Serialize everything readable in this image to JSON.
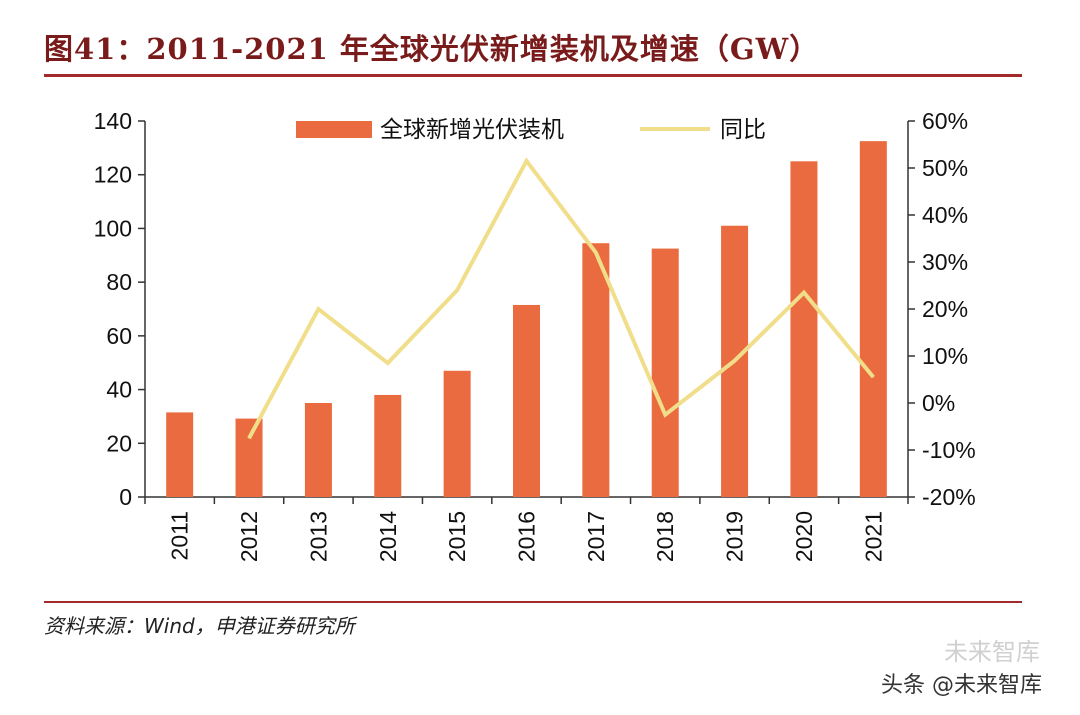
{
  "figure": {
    "title": "图41：2011-2021 年全球光伏新增装机及增速（GW）",
    "source": "资料来源：Wind，申港证券研究所",
    "watermark": "头条 @未来智库",
    "watermark_ghost": "未来智库"
  },
  "colors": {
    "bar": "#ea6b3f",
    "line": "#f1de8a",
    "title": "#7a1b1b",
    "rule": "#a32a2a"
  },
  "chart_data": {
    "type": "bar",
    "categories": [
      "2011",
      "2012",
      "2013",
      "2014",
      "2015",
      "2016",
      "2017",
      "2018",
      "2019",
      "2020",
      "2021"
    ],
    "series": [
      {
        "name": "全球新增光伏装机",
        "type": "bar",
        "axis": "left",
        "values": [
          31.5,
          29.2,
          35.0,
          38.0,
          47.0,
          71.5,
          94.5,
          92.5,
          101.0,
          125.0,
          132.5
        ]
      },
      {
        "name": "同比",
        "type": "line",
        "axis": "right",
        "values": [
          null,
          -7.5,
          20.0,
          8.5,
          24.0,
          51.5,
          32.0,
          -2.5,
          9.0,
          23.5,
          5.5
        ]
      }
    ],
    "y_left": {
      "min": 0,
      "max": 140,
      "step": 20,
      "ticks": [
        "0",
        "20",
        "40",
        "60",
        "80",
        "100",
        "120",
        "140"
      ]
    },
    "y_right": {
      "min": -20,
      "max": 60,
      "step": 10,
      "ticks": [
        "-20%",
        "-10%",
        "0%",
        "10%",
        "20%",
        "30%",
        "40%",
        "50%",
        "60%"
      ]
    },
    "legend_position": "top-center",
    "grid": false
  }
}
